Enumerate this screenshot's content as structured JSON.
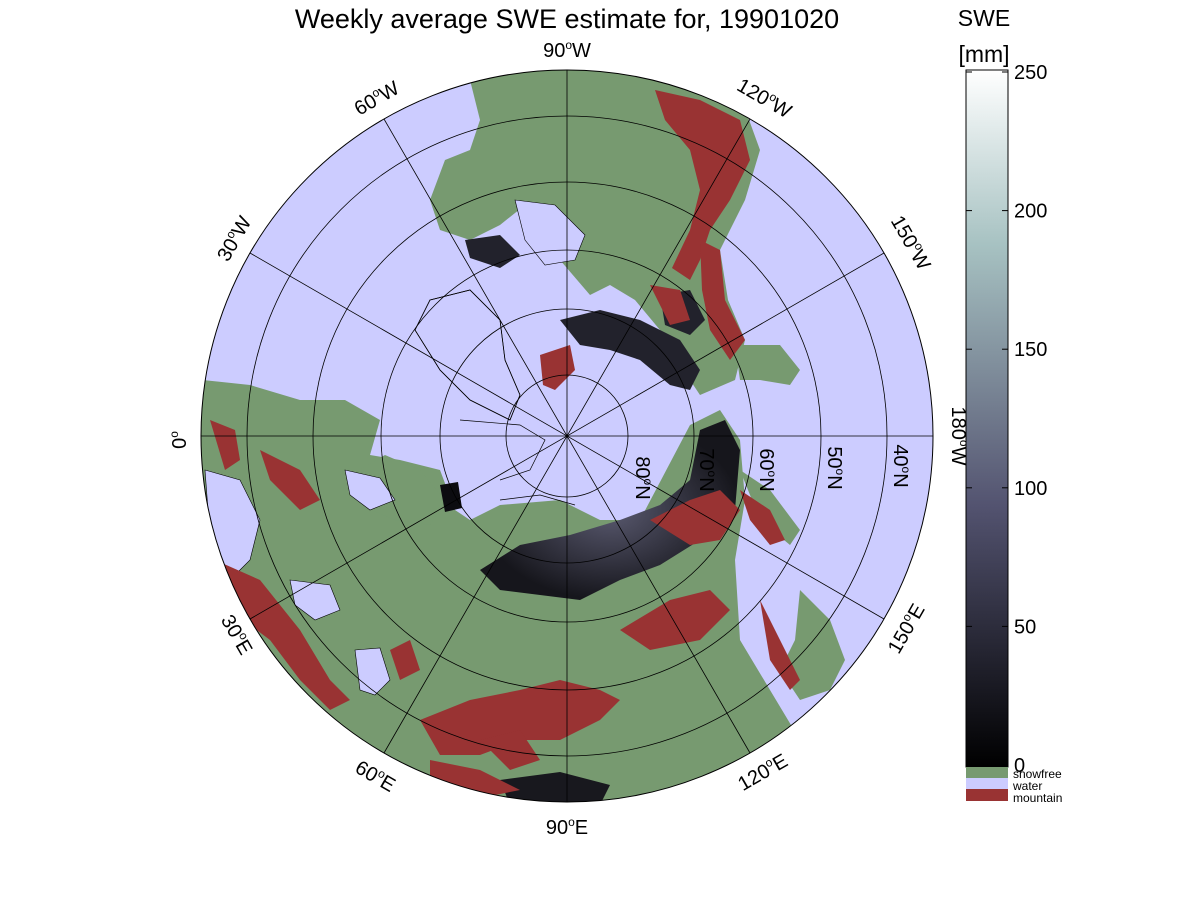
{
  "title": "Weekly average SWE estimate for, 19901020",
  "colorbar": {
    "title_line1": "SWE",
    "title_line2": "[mm]",
    "ticks": [
      0,
      50,
      100,
      150,
      200,
      250
    ],
    "min": 0,
    "max": 250,
    "colormap": "bone",
    "legend": [
      {
        "label": "snowfree",
        "color": "#779a70"
      },
      {
        "label": "water",
        "color": "#ccccff"
      },
      {
        "label": "mountain",
        "color": "#993333"
      }
    ]
  },
  "map": {
    "projection": "north polar stereographic",
    "colors": {
      "water": "#ccccff",
      "snowfree": "#779a70",
      "mountain": "#993333",
      "snow_shallow": "#1c1c24",
      "snow_deep": "#4a4a5e",
      "outline": "#000000"
    },
    "meridian_labels": [
      {
        "lon": "90W",
        "text": "90",
        "unit": "o",
        "hemi": "W"
      },
      {
        "lon": "120W",
        "text": "120",
        "unit": "o",
        "hemi": "W"
      },
      {
        "lon": "150W",
        "text": "150",
        "unit": "o",
        "hemi": "W"
      },
      {
        "lon": "180W",
        "text": "180",
        "unit": "o",
        "hemi": "W"
      },
      {
        "lon": "150E",
        "text": "150",
        "unit": "o",
        "hemi": "E"
      },
      {
        "lon": "120E",
        "text": "120",
        "unit": "o",
        "hemi": "E"
      },
      {
        "lon": "90E",
        "text": "90",
        "unit": "o",
        "hemi": "E"
      },
      {
        "lon": "60E",
        "text": "60",
        "unit": "o",
        "hemi": "E"
      },
      {
        "lon": "30E",
        "text": "30",
        "unit": "o",
        "hemi": "E"
      },
      {
        "lon": "0",
        "text": "0",
        "unit": "o",
        "hemi": ""
      },
      {
        "lon": "30W",
        "text": "30",
        "unit": "o",
        "hemi": "W"
      },
      {
        "lon": "60W",
        "text": "60",
        "unit": "o",
        "hemi": "W"
      }
    ],
    "parallel_labels": [
      {
        "lat": "80N",
        "text": "80",
        "unit": "o",
        "hemi": "N"
      },
      {
        "lat": "70N",
        "text": "70",
        "unit": "o",
        "hemi": "N"
      },
      {
        "lat": "60N",
        "text": "60",
        "unit": "o",
        "hemi": "N"
      },
      {
        "lat": "50N",
        "text": "50",
        "unit": "o",
        "hemi": "N"
      },
      {
        "lat": "40N",
        "text": "40",
        "unit": "o",
        "hemi": "N"
      }
    ]
  }
}
